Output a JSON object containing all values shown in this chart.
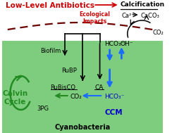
{
  "title_text": "Low-Level Antibiotics",
  "title_color": "#cc0000",
  "calcification_label": "Calcification",
  "ecological_impacts": "Ecological\nImpacts",
  "ecological_color": "#cc0000",
  "biofilm_label": "Biofilm",
  "calvin_label": "Calvin\nCycle",
  "calvin_color": "#228B22",
  "rubp_label": "RuBP",
  "rubisco_label": "RuBisCO",
  "ca_label": "CA",
  "co2_inner_label": "CO₂",
  "hco3_black_label": "HCO₃⁻",
  "hco3_blue_label": "HCO₃⁻",
  "oh_label": "OH⁻",
  "ca2_label": "Ca²⁺",
  "caco3_label": "CaCO₃",
  "co2_right_label": "CO₂",
  "threpg_label": "3PG",
  "ccm_label": "CCM",
  "ccm_color": "#0000cc",
  "cyanobacteria_label": "Cyanobacteria",
  "bg_green": "#7ECD7E",
  "bg_white": "#ffffff",
  "arrow_black": "#000000",
  "arrow_blue": "#1a6cff",
  "arrow_red": "#cc0000",
  "dashed_color": "#6B0000",
  "cell_edge": "#333333"
}
